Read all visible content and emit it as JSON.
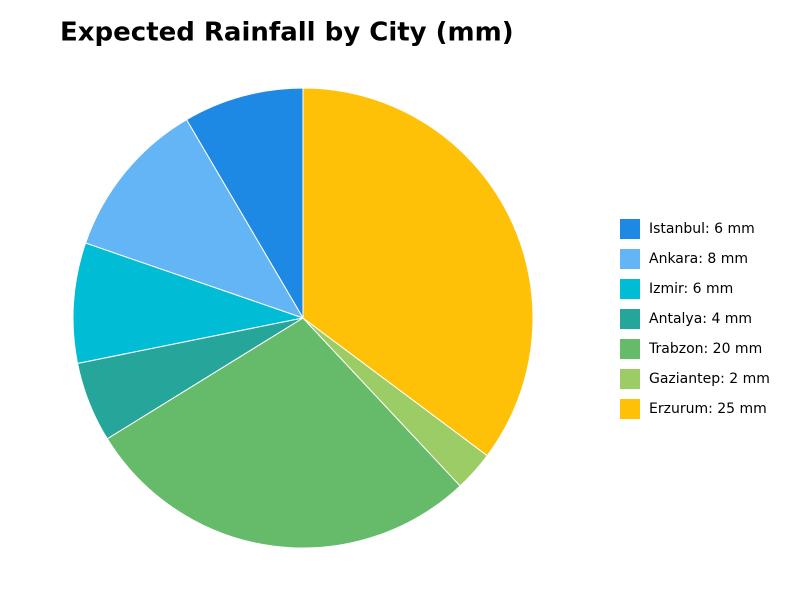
{
  "chart_data": {
    "type": "pie",
    "title": "Expected Rainfall by City (mm)",
    "categories": [
      "Istanbul: 6 mm",
      "Ankara: 8 mm",
      "Izmir: 6 mm",
      "Antalya: 4 mm",
      "Trabzon: 20 mm",
      "Gaziantep: 2 mm",
      "Erzurum: 25 mm"
    ],
    "values": [
      6,
      8,
      6,
      4,
      20,
      2,
      25
    ],
    "colors": [
      "#1e88e5",
      "#64b5f6",
      "#00bcd4",
      "#26a69a",
      "#66bb6a",
      "#9ccc65",
      "#ffc107"
    ],
    "legend_position": "right"
  }
}
